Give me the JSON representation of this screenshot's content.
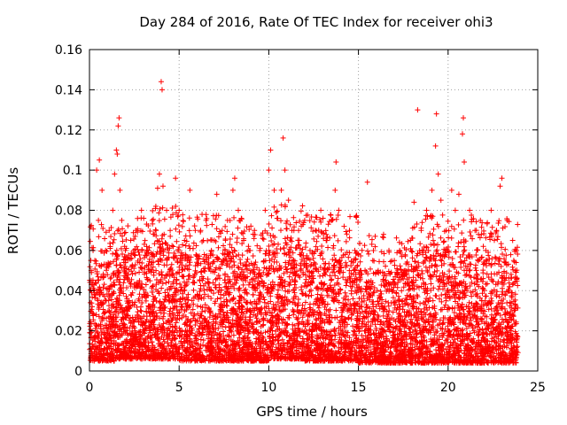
{
  "chart_data": {
    "type": "scatter",
    "title": "Day 284 of 2016, Rate Of TEC Index for receiver ohi3",
    "xlabel": "GPS time / hours",
    "ylabel": "ROTI / TECUs",
    "xlim": [
      0,
      25
    ],
    "ylim": [
      0,
      0.16
    ],
    "xticks": [
      0,
      5,
      10,
      15,
      20,
      25
    ],
    "xtick_labels": [
      "0",
      "5",
      "10",
      "15",
      "20",
      "25"
    ],
    "yticks": [
      0,
      0.02,
      0.04,
      0.06,
      0.08,
      0.1,
      0.12,
      0.14,
      0.16
    ],
    "ytick_labels": [
      "0",
      "0.02",
      "0.04",
      "0.06",
      "0.08",
      "0.1",
      "0.12",
      "0.14",
      "0.16"
    ],
    "grid": true,
    "marker": "+",
    "color": "#ff0000",
    "series": [
      {
        "name": "ROTI",
        "points": [
          [
            0.1,
            0.045
          ],
          [
            0.2,
            0.06
          ],
          [
            0.3,
            0.055
          ],
          [
            0.4,
            0.1
          ],
          [
            0.5,
            0.075
          ],
          [
            0.55,
            0.105
          ],
          [
            0.7,
            0.09
          ],
          [
            0.9,
            0.06
          ],
          [
            1.1,
            0.07
          ],
          [
            1.3,
            0.08
          ],
          [
            1.4,
            0.098
          ],
          [
            1.5,
            0.11
          ],
          [
            1.55,
            0.108
          ],
          [
            1.6,
            0.122
          ],
          [
            1.65,
            0.126
          ],
          [
            1.7,
            0.09
          ],
          [
            1.8,
            0.075
          ],
          [
            2.0,
            0.06
          ],
          [
            2.3,
            0.065
          ],
          [
            2.6,
            0.07
          ],
          [
            2.9,
            0.08
          ],
          [
            3.2,
            0.06
          ],
          [
            3.5,
            0.075
          ],
          [
            3.7,
            0.082
          ],
          [
            3.8,
            0.091
          ],
          [
            3.9,
            0.098
          ],
          [
            4.0,
            0.144
          ],
          [
            4.05,
            0.14
          ],
          [
            4.1,
            0.092
          ],
          [
            4.3,
            0.08
          ],
          [
            4.5,
            0.07
          ],
          [
            4.8,
            0.096
          ],
          [
            5.0,
            0.08
          ],
          [
            5.3,
            0.065
          ],
          [
            5.6,
            0.09
          ],
          [
            5.9,
            0.07
          ],
          [
            6.2,
            0.07
          ],
          [
            6.5,
            0.075
          ],
          [
            6.8,
            0.06
          ],
          [
            7.1,
            0.088
          ],
          [
            7.4,
            0.07
          ],
          [
            7.7,
            0.075
          ],
          [
            8.0,
            0.09
          ],
          [
            8.1,
            0.096
          ],
          [
            8.3,
            0.08
          ],
          [
            8.6,
            0.065
          ],
          [
            8.9,
            0.06
          ],
          [
            9.2,
            0.07
          ],
          [
            9.5,
            0.06
          ],
          [
            9.8,
            0.08
          ],
          [
            10.0,
            0.1
          ],
          [
            10.1,
            0.11
          ],
          [
            10.3,
            0.09
          ],
          [
            10.5,
            0.076
          ],
          [
            10.7,
            0.09
          ],
          [
            10.8,
            0.116
          ],
          [
            10.9,
            0.1
          ],
          [
            11.1,
            0.085
          ],
          [
            11.4,
            0.07
          ],
          [
            11.7,
            0.065
          ],
          [
            12.0,
            0.075
          ],
          [
            12.3,
            0.06
          ],
          [
            12.6,
            0.07
          ],
          [
            12.9,
            0.08
          ],
          [
            13.2,
            0.065
          ],
          [
            13.5,
            0.075
          ],
          [
            13.7,
            0.09
          ],
          [
            13.75,
            0.104
          ],
          [
            13.9,
            0.08
          ],
          [
            14.2,
            0.072
          ],
          [
            14.5,
            0.07
          ],
          [
            14.8,
            0.06
          ],
          [
            15.1,
            0.05
          ],
          [
            15.5,
            0.094
          ],
          [
            15.8,
            0.055
          ],
          [
            16.1,
            0.05
          ],
          [
            16.4,
            0.068
          ],
          [
            16.7,
            0.06
          ],
          [
            17.0,
            0.055
          ],
          [
            17.3,
            0.06
          ],
          [
            17.6,
            0.05
          ],
          [
            17.9,
            0.065
          ],
          [
            18.1,
            0.084
          ],
          [
            18.3,
            0.13
          ],
          [
            18.5,
            0.07
          ],
          [
            18.8,
            0.08
          ],
          [
            19.1,
            0.09
          ],
          [
            19.3,
            0.112
          ],
          [
            19.35,
            0.128
          ],
          [
            19.45,
            0.098
          ],
          [
            19.6,
            0.085
          ],
          [
            19.9,
            0.07
          ],
          [
            20.2,
            0.09
          ],
          [
            20.4,
            0.08
          ],
          [
            20.6,
            0.088
          ],
          [
            20.8,
            0.118
          ],
          [
            20.85,
            0.126
          ],
          [
            20.9,
            0.104
          ],
          [
            21.2,
            0.08
          ],
          [
            21.5,
            0.07
          ],
          [
            21.8,
            0.075
          ],
          [
            22.1,
            0.06
          ],
          [
            22.4,
            0.08
          ],
          [
            22.7,
            0.07
          ],
          [
            22.9,
            0.092
          ],
          [
            23.0,
            0.096
          ],
          [
            23.3,
            0.075
          ],
          [
            23.6,
            0.065
          ],
          [
            23.8,
            0.06
          ]
        ],
        "dense_band": [
          {
            "from": 0.0,
            "to": 1.5,
            "min": 0.005,
            "max": 0.055
          },
          {
            "from": 1.5,
            "to": 3.5,
            "min": 0.006,
            "max": 0.06
          },
          {
            "from": 3.5,
            "to": 5.0,
            "min": 0.006,
            "max": 0.065
          },
          {
            "from": 5.0,
            "to": 8.5,
            "min": 0.005,
            "max": 0.06
          },
          {
            "from": 8.5,
            "to": 10.0,
            "min": 0.005,
            "max": 0.055
          },
          {
            "from": 10.0,
            "to": 12.0,
            "min": 0.006,
            "max": 0.065
          },
          {
            "from": 12.0,
            "to": 15.0,
            "min": 0.005,
            "max": 0.06
          },
          {
            "from": 15.0,
            "to": 18.0,
            "min": 0.004,
            "max": 0.05
          },
          {
            "from": 18.0,
            "to": 21.5,
            "min": 0.004,
            "max": 0.06
          },
          {
            "from": 21.5,
            "to": 23.9,
            "min": 0.004,
            "max": 0.058
          }
        ]
      }
    ]
  }
}
